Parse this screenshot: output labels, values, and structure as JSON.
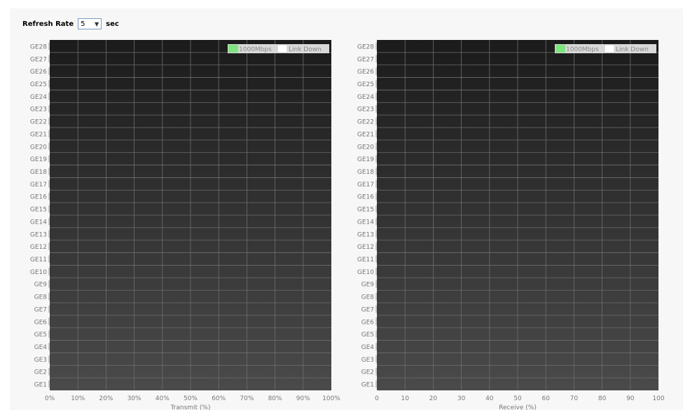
{
  "toolbar": {
    "refresh_label": "Refresh Rate",
    "refresh_value": "5",
    "unit_label": "sec"
  },
  "colors": {
    "link_1000": "#7fe37f",
    "link_down": "#ffffff",
    "plot_top": "#1b1b1b",
    "plot_bottom": "#4a4a4a"
  },
  "chart_data": [
    {
      "type": "bar",
      "orientation": "horizontal",
      "categories": [
        "GE28",
        "GE27",
        "GE26",
        "GE25",
        "GE24",
        "GE23",
        "GE22",
        "GE21",
        "GE20",
        "GE19",
        "GE18",
        "GE17",
        "GE16",
        "GE15",
        "GE14",
        "GE13",
        "GE12",
        "GE11",
        "GE10",
        "GE9",
        "GE8",
        "GE7",
        "GE6",
        "GE5",
        "GE4",
        "GE3",
        "GE2",
        "GE1"
      ],
      "values": [
        0,
        0,
        0,
        0,
        0,
        0,
        0,
        0,
        0,
        0,
        0,
        0,
        0,
        0,
        0,
        0,
        0,
        0,
        0,
        0,
        0,
        0,
        0,
        0,
        0,
        0,
        0,
        0
      ],
      "xlabel": "Transmit (%)",
      "xticks": [
        "0%",
        "10%",
        "20%",
        "30%",
        "40%",
        "50%",
        "60%",
        "70%",
        "80%",
        "90%",
        "100%"
      ],
      "xlim": [
        0,
        100
      ],
      "legend": [
        "1000Mbps",
        "Link Down"
      ],
      "legend_placement": "top-right",
      "grid": true
    },
    {
      "type": "bar",
      "orientation": "horizontal",
      "categories": [
        "GE28",
        "GE27",
        "GE26",
        "GE25",
        "GE24",
        "GE23",
        "GE22",
        "GE21",
        "GE20",
        "GE19",
        "GE18",
        "GE17",
        "GE16",
        "GE15",
        "GE14",
        "GE13",
        "GE12",
        "GE11",
        "GE10",
        "GE9",
        "GE8",
        "GE7",
        "GE6",
        "GE5",
        "GE4",
        "GE3",
        "GE2",
        "GE1"
      ],
      "values": [
        0,
        0,
        0,
        0,
        0,
        0,
        0,
        0,
        0,
        0,
        0,
        0,
        0,
        0,
        0,
        0,
        0,
        0,
        0,
        0,
        0,
        0,
        0,
        0,
        0,
        0,
        0,
        0
      ],
      "xlabel": "Receive (%)",
      "xticks": [
        "0",
        "10",
        "20",
        "30",
        "40",
        "50",
        "60",
        "70",
        "80",
        "90",
        "100"
      ],
      "xlim": [
        0,
        100
      ],
      "legend": [
        "1000Mbps",
        "Link Down"
      ],
      "legend_placement": "top-right",
      "grid": true
    }
  ]
}
